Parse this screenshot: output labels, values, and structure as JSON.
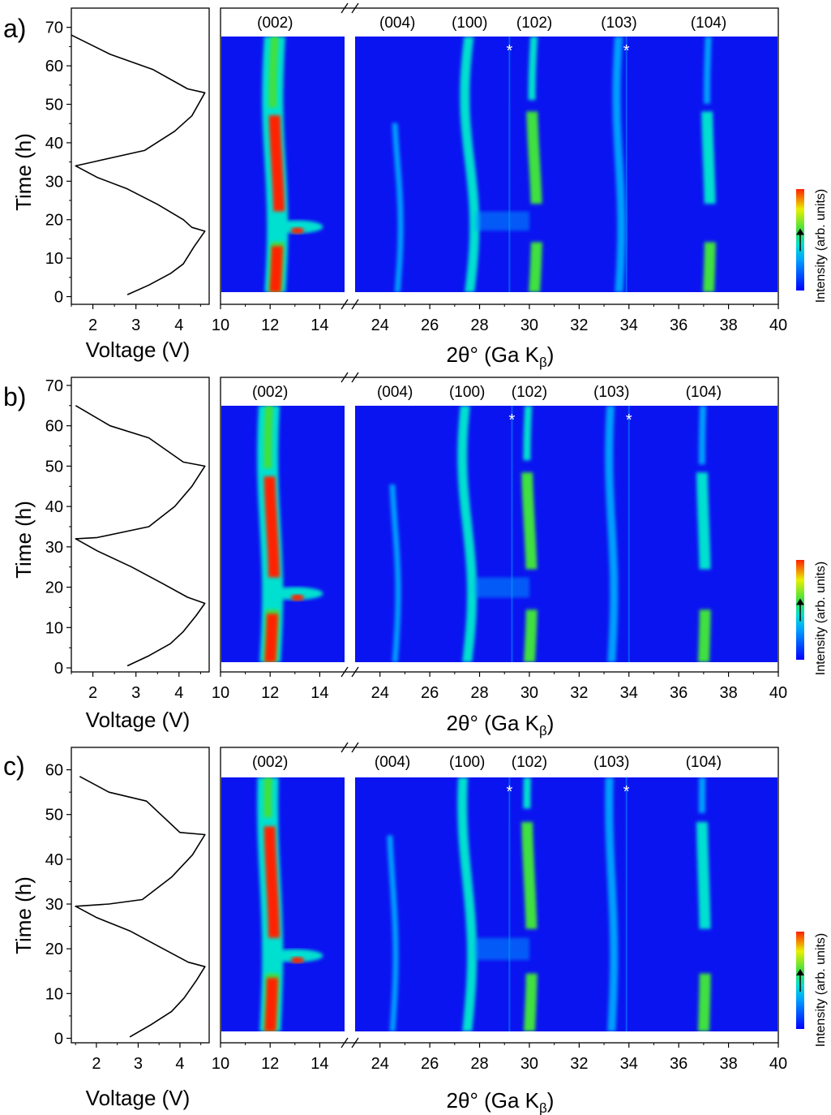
{
  "figure": {
    "background_color": "#ffffff",
    "heat_colors": [
      "#0000ff",
      "#00a0ff",
      "#00e0d0",
      "#40e040",
      "#e8f000",
      "#ff2000"
    ],
    "heat_base_color": "#0a14f0"
  },
  "chart_data": [
    {
      "panel_label": "a)",
      "type": "heatmap",
      "voltage_plot": {
        "type": "line",
        "xlabel": "Voltage (V)",
        "ylabel": "Time (h)",
        "xlim": [
          1.5,
          4.7
        ],
        "xticks": [
          2,
          3,
          4
        ],
        "ylim": [
          -2,
          75
        ],
        "yticks": [
          0,
          10,
          20,
          30,
          40,
          50,
          60,
          70
        ],
        "voltage_profile": [
          {
            "v": 2.8,
            "t": 0.5
          },
          {
            "v": 3.3,
            "t": 3
          },
          {
            "v": 3.8,
            "t": 6
          },
          {
            "v": 4.1,
            "t": 8.5
          },
          {
            "v": 4.35,
            "t": 13
          },
          {
            "v": 4.6,
            "t": 17
          },
          {
            "v": 4.3,
            "t": 18
          },
          {
            "v": 4.1,
            "t": 20
          },
          {
            "v": 3.5,
            "t": 24
          },
          {
            "v": 2.8,
            "t": 28
          },
          {
            "v": 2.1,
            "t": 31
          },
          {
            "v": 1.6,
            "t": 34
          },
          {
            "v": 2.0,
            "t": 35
          },
          {
            "v": 3.2,
            "t": 38
          },
          {
            "v": 3.9,
            "t": 43
          },
          {
            "v": 4.3,
            "t": 47
          },
          {
            "v": 4.6,
            "t": 53
          },
          {
            "v": 4.2,
            "t": 54
          },
          {
            "v": 3.4,
            "t": 59
          },
          {
            "v": 2.4,
            "t": 63
          },
          {
            "v": 1.5,
            "t": 68
          }
        ]
      },
      "xrd_map": {
        "xlabel_main": "2θ° (Ga K",
        "xlabel_sub": "β",
        "xlabel_end": ")",
        "xticks_left": [
          10,
          12,
          14
        ],
        "xticks_right": [
          24,
          26,
          28,
          30,
          32,
          34,
          36,
          38,
          40
        ],
        "xlim_left": [
          10,
          15
        ],
        "xlim_right": [
          23,
          40
        ],
        "t_range": [
          1,
          67.5
        ],
        "star_markers": [
          29.2,
          33.9
        ],
        "peaks": [
          {
            "label": "(002)",
            "label_x": 12.2
          },
          {
            "label": "(004)",
            "label_x": 24.7
          },
          {
            "label": "(100)",
            "label_x": 27.6
          },
          {
            "label": "(102)",
            "label_x": 30.2
          },
          {
            "label": "(103)",
            "label_x": 33.6
          },
          {
            "label": "(104)",
            "label_x": 37.2
          }
        ],
        "colorbar_label": "Intensity (arb. units)"
      }
    },
    {
      "panel_label": "b)",
      "type": "heatmap",
      "voltage_plot": {
        "type": "line",
        "xlabel": "Voltage (V)",
        "ylabel": "Time (h)",
        "xlim": [
          1.5,
          4.7
        ],
        "xticks": [
          2,
          3,
          4
        ],
        "ylim": [
          -1,
          72
        ],
        "yticks": [
          0,
          10,
          20,
          30,
          40,
          50,
          60,
          70
        ],
        "voltage_profile": [
          {
            "v": 2.8,
            "t": 0.5
          },
          {
            "v": 3.3,
            "t": 3
          },
          {
            "v": 3.8,
            "t": 6
          },
          {
            "v": 4.1,
            "t": 9
          },
          {
            "v": 4.4,
            "t": 13
          },
          {
            "v": 4.6,
            "t": 16
          },
          {
            "v": 4.2,
            "t": 17.5
          },
          {
            "v": 3.6,
            "t": 21
          },
          {
            "v": 2.9,
            "t": 25
          },
          {
            "v": 2.1,
            "t": 29
          },
          {
            "v": 1.6,
            "t": 32
          },
          {
            "v": 2.1,
            "t": 32.3
          },
          {
            "v": 3.3,
            "t": 35
          },
          {
            "v": 3.9,
            "t": 40
          },
          {
            "v": 4.3,
            "t": 45
          },
          {
            "v": 4.6,
            "t": 50
          },
          {
            "v": 4.1,
            "t": 51
          },
          {
            "v": 3.3,
            "t": 57
          },
          {
            "v": 2.4,
            "t": 60
          },
          {
            "v": 1.6,
            "t": 65
          }
        ]
      },
      "xrd_map": {
        "xlabel_main": "2θ° (Ga K",
        "xlabel_sub": "β",
        "xlabel_end": ")",
        "xticks_left": [
          10,
          12,
          14
        ],
        "xticks_right": [
          24,
          26,
          28,
          30,
          32,
          34,
          36,
          38,
          40
        ],
        "xlim_left": [
          10,
          15
        ],
        "xlim_right": [
          23,
          40
        ],
        "t_range": [
          1,
          64.5
        ],
        "star_markers": [
          29.3,
          34.0
        ],
        "peaks": [
          {
            "label": "(002)",
            "label_x": 12.0
          },
          {
            "label": "(004)",
            "label_x": 24.6
          },
          {
            "label": "(100)",
            "label_x": 27.5
          },
          {
            "label": "(102)",
            "label_x": 30.0
          },
          {
            "label": "(103)",
            "label_x": 33.3
          },
          {
            "label": "(104)",
            "label_x": 37.0
          }
        ],
        "colorbar_label": "Intensity (arb. units)"
      }
    },
    {
      "panel_label": "c)",
      "type": "heatmap",
      "voltage_plot": {
        "type": "line",
        "xlabel": "Voltage (V)",
        "ylabel": "Time (h)",
        "xlim": [
          1.4,
          4.7
        ],
        "xticks": [
          2,
          3,
          4
        ],
        "ylim": [
          -1,
          65
        ],
        "yticks": [
          0,
          10,
          20,
          30,
          40,
          50,
          60
        ],
        "voltage_profile": [
          {
            "v": 2.8,
            "t": 0.3
          },
          {
            "v": 3.3,
            "t": 3
          },
          {
            "v": 3.8,
            "t": 6
          },
          {
            "v": 4.1,
            "t": 9
          },
          {
            "v": 4.4,
            "t": 13
          },
          {
            "v": 4.6,
            "t": 16
          },
          {
            "v": 4.2,
            "t": 17
          },
          {
            "v": 3.6,
            "t": 20
          },
          {
            "v": 2.8,
            "t": 24
          },
          {
            "v": 2.0,
            "t": 27
          },
          {
            "v": 1.5,
            "t": 29.5
          },
          {
            "v": 2.3,
            "t": 30
          },
          {
            "v": 3.1,
            "t": 31
          },
          {
            "v": 3.8,
            "t": 36
          },
          {
            "v": 4.3,
            "t": 41
          },
          {
            "v": 4.6,
            "t": 45.5
          },
          {
            "v": 4.0,
            "t": 46
          },
          {
            "v": 3.2,
            "t": 53
          },
          {
            "v": 2.3,
            "t": 55
          },
          {
            "v": 1.6,
            "t": 58.5
          }
        ]
      },
      "xrd_map": {
        "xlabel_main": "2θ° (Ga K",
        "xlabel_sub": "β",
        "xlabel_end": ")",
        "xticks_left": [
          10,
          12,
          14
        ],
        "xticks_right": [
          24,
          26,
          28,
          30,
          32,
          34,
          36,
          38,
          40
        ],
        "xlim_left": [
          10,
          15
        ],
        "xlim_right": [
          23,
          40
        ],
        "t_range": [
          1,
          58
        ],
        "star_markers": [
          29.2,
          33.9
        ],
        "peaks": [
          {
            "label": "(002)",
            "label_x": 12.0
          },
          {
            "label": "(004)",
            "label_x": 24.5
          },
          {
            "label": "(100)",
            "label_x": 27.5
          },
          {
            "label": "(102)",
            "label_x": 30.0
          },
          {
            "label": "(103)",
            "label_x": 33.3
          },
          {
            "label": "(104)",
            "label_x": 37.0
          }
        ],
        "colorbar_label": "Intensity (arb. units)"
      }
    }
  ]
}
